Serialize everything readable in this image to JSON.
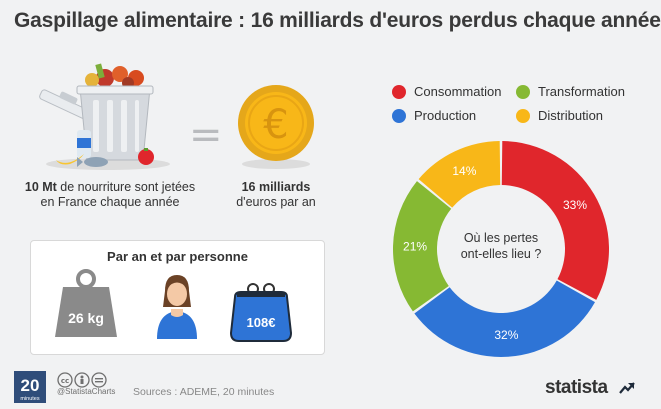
{
  "header": {
    "title": "Gaspillage alimentaire : 16 milliards d'euros perdus chaque année"
  },
  "left": {
    "waste_bold": "10 Mt",
    "waste_rest": " de nourriture sont jetées",
    "waste_line2": "en France chaque année",
    "money_bold": "16 milliards",
    "money_line2": "d'euros par an",
    "equals_sign": "="
  },
  "panel": {
    "title": "Par an et par personne",
    "weight_label": "26 kg",
    "wallet_label": "108€"
  },
  "chart_data": {
    "type": "pie",
    "donut": true,
    "center_label": [
      "Où les pertes",
      "ont-elles lieu ?"
    ],
    "categories": [
      "Consommation",
      "Production",
      "Transformation",
      "Distribution"
    ],
    "values": [
      33,
      32,
      21,
      14
    ],
    "value_labels": [
      "33%",
      "32%",
      "21%",
      "14%"
    ],
    "colors": [
      "#e0262c",
      "#2e74d6",
      "#86b933",
      "#f8b718"
    ],
    "legend_placement": "top",
    "legend_layout": [
      [
        "Consommation",
        "Transformation"
      ],
      [
        "Production",
        "Distribution"
      ]
    ]
  },
  "footer": {
    "handle": "@StatistaCharts",
    "sources": "Sources : ADEME, 20 minutes",
    "brand": "statista",
    "logo_text": "20 minutes"
  },
  "icons": [
    "trash-bin-icon",
    "coin-euro-icon",
    "weight-icon",
    "person-icon",
    "wallet-icon",
    "creative-commons-icon",
    "statista-logo-icon"
  ]
}
